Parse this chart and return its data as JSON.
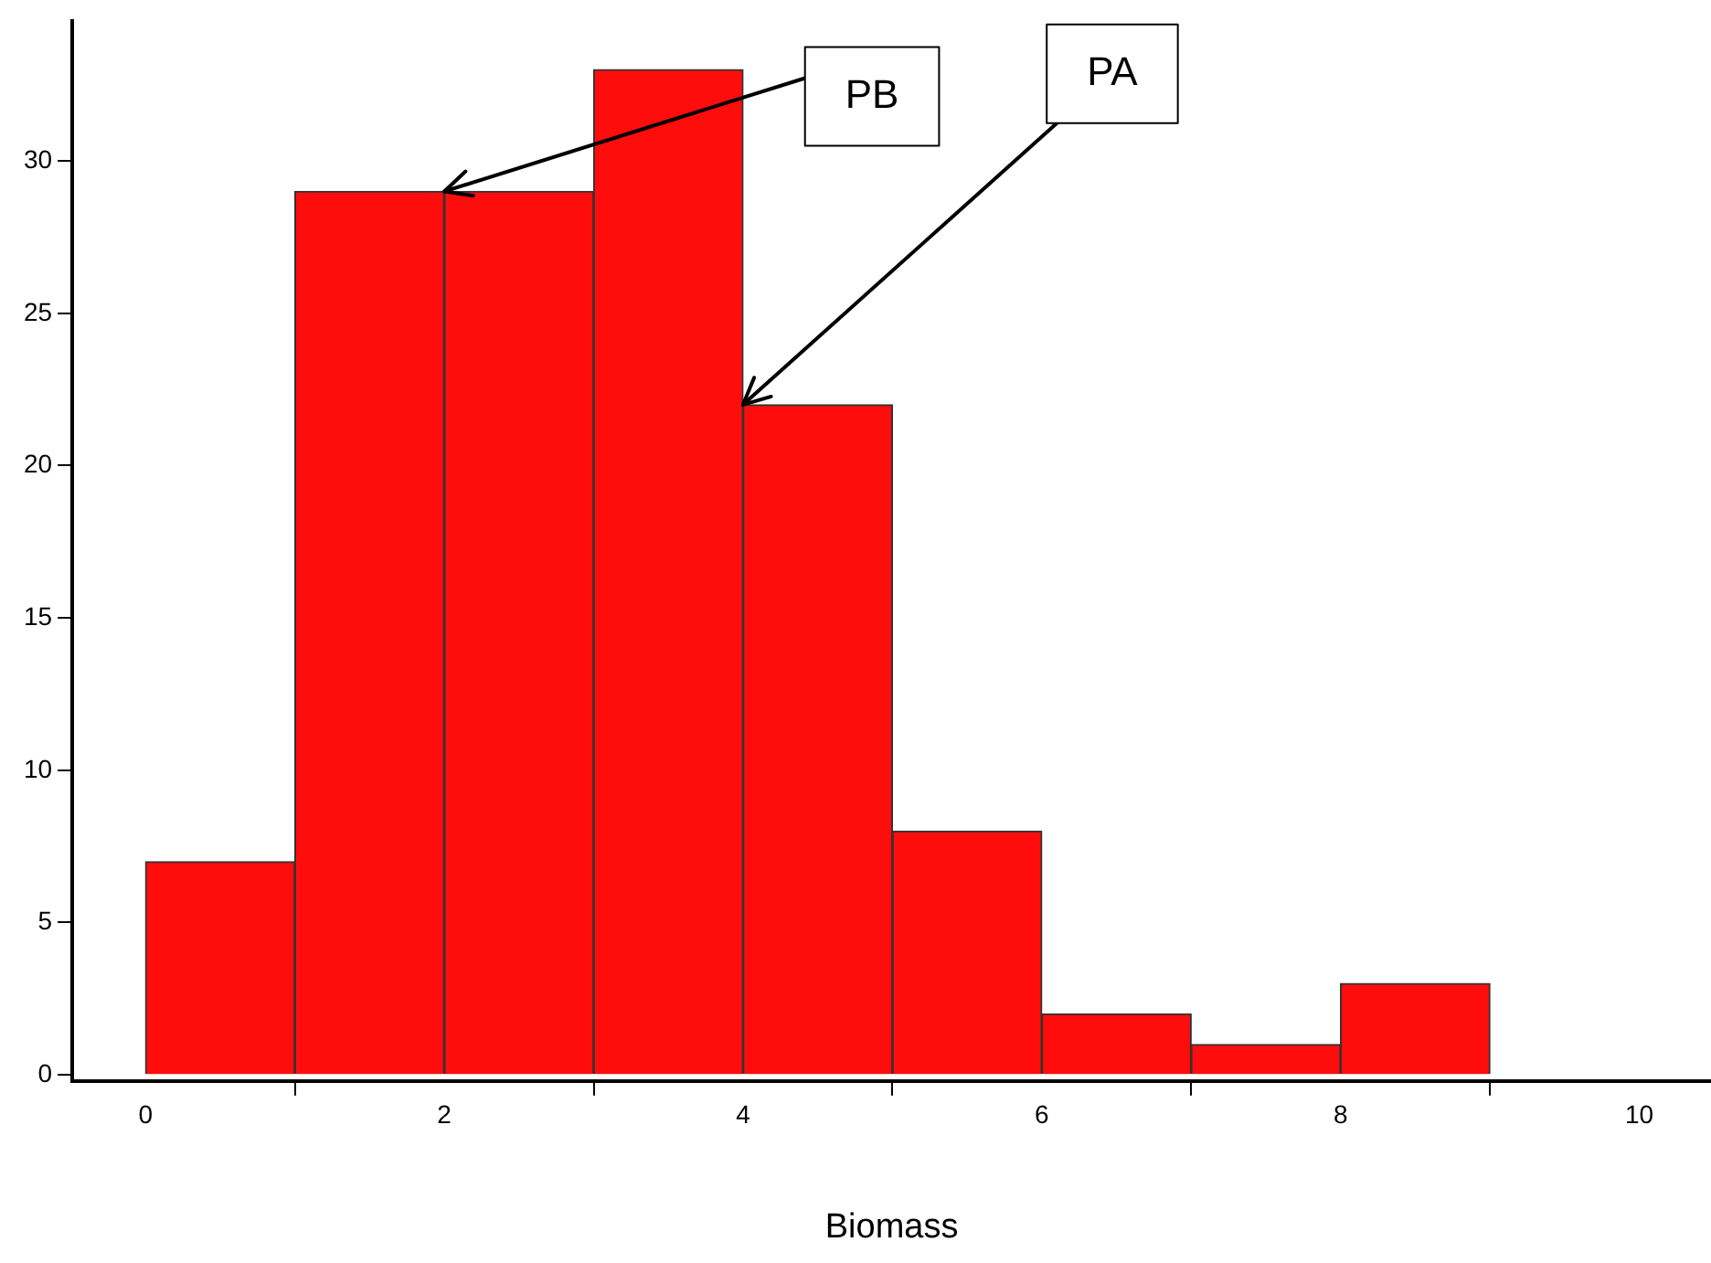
{
  "chart_data": {
    "type": "histogram",
    "xlabel": "Biomass",
    "bins": [
      0,
      1,
      2,
      3,
      4,
      5,
      6,
      7,
      8,
      9
    ],
    "values": [
      7,
      29,
      29,
      33,
      22,
      8,
      2,
      1,
      3
    ],
    "color": "#ff0d0d",
    "xlim": [
      -0.49,
      10.48
    ],
    "xticks": [
      0,
      2,
      4,
      6,
      8,
      10
    ],
    "ylim": [
      -0.2,
      34.6
    ],
    "yticks": [
      0,
      5,
      10,
      15,
      20,
      25,
      30
    ],
    "grid": false,
    "legend": false,
    "annotations": [
      {
        "text": "PB",
        "x": 2,
        "y": 29
      },
      {
        "text": "PA",
        "x": 4,
        "y": 22
      }
    ]
  }
}
